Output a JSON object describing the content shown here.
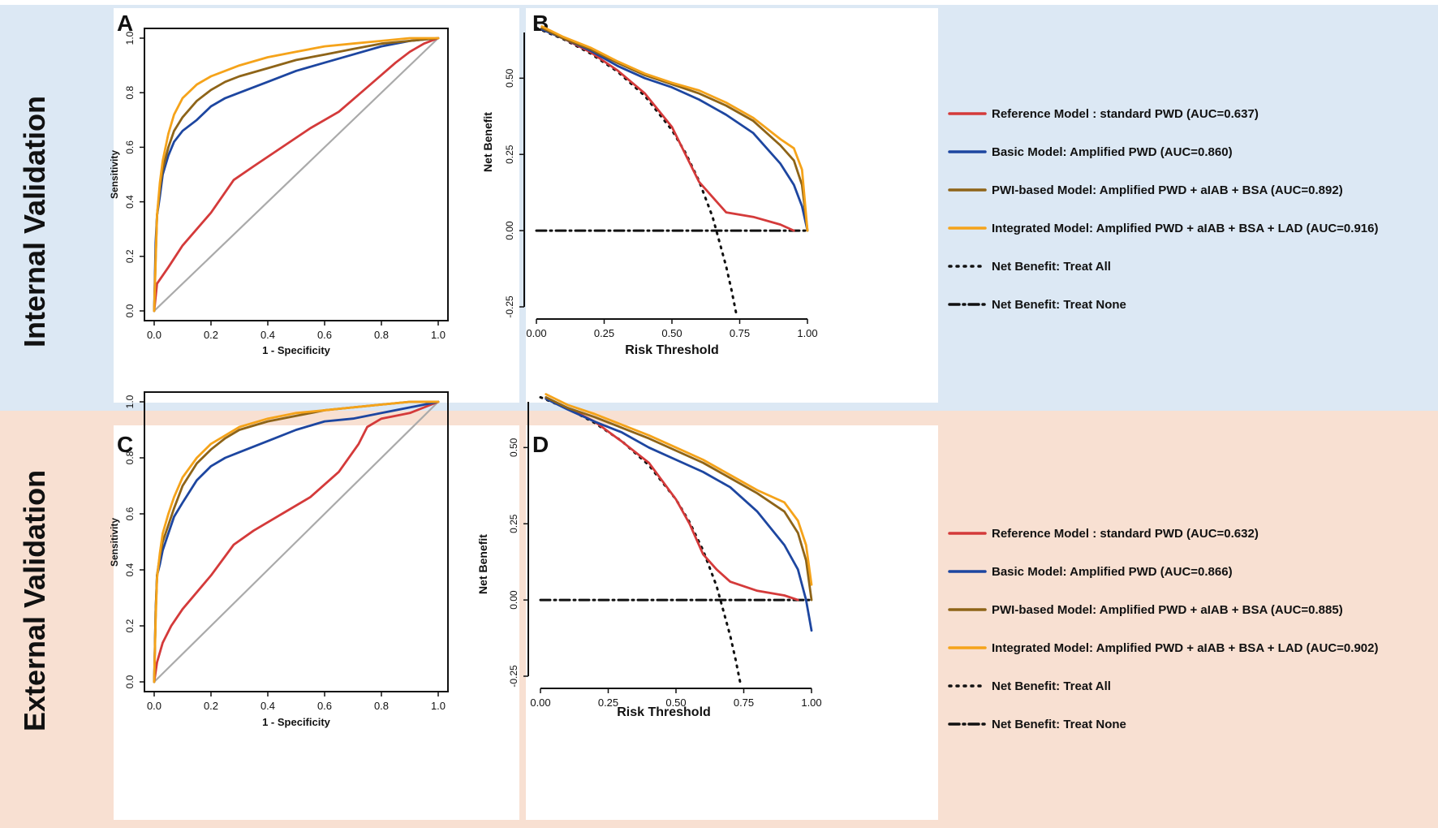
{
  "sections": [
    {
      "label": "Internal Validation",
      "bg": "#dce8f4"
    },
    {
      "label": "External Validation",
      "bg": "#f8e0d2"
    }
  ],
  "colors": {
    "reference": "#d43a3a",
    "basic": "#1d46a0",
    "pwi": "#8e6418",
    "integrated": "#f5a31a",
    "treat": "#111111",
    "diagonal": "#aaaaaa"
  },
  "legends": [
    {
      "items": [
        {
          "key": "reference",
          "style": "solid",
          "text": "Reference Model : standard PWD (AUC=0.637)"
        },
        {
          "key": "basic",
          "style": "solid",
          "text": "Basic Model: Amplified PWD (AUC=0.860)"
        },
        {
          "key": "pwi",
          "style": "solid",
          "text": "PWI-based Model: Amplified PWD + aIAB + BSA (AUC=0.892)"
        },
        {
          "key": "integrated",
          "style": "solid",
          "text": "Integrated Model: Amplified PWD + aIAB + BSA + LAD (AUC=0.916)"
        },
        {
          "key": "treat",
          "style": "dotted",
          "text": "Net Benefit: Treat All"
        },
        {
          "key": "treat",
          "style": "dashdot",
          "text": "Net Benefit: Treat None"
        }
      ]
    },
    {
      "items": [
        {
          "key": "reference",
          "style": "solid",
          "text": "Reference Model : standard PWD (AUC=0.632)"
        },
        {
          "key": "basic",
          "style": "solid",
          "text": "Basic Model: Amplified PWD (AUC=0.866)"
        },
        {
          "key": "pwi",
          "style": "solid",
          "text": "PWI-based Model: Amplified PWD + aIAB + BSA (AUC=0.885)"
        },
        {
          "key": "integrated",
          "style": "solid",
          "text": "Integrated Model: Amplified PWD + aIAB + BSA + LAD (AUC=0.902)"
        },
        {
          "key": "treat",
          "style": "dotted",
          "text": "Net Benefit: Treat All"
        },
        {
          "key": "treat",
          "style": "dashdot",
          "text": "Net Benefit: Treat None"
        }
      ]
    }
  ],
  "chart_data": [
    {
      "panel": "A",
      "type": "line",
      "title": "",
      "xlabel": "1 - Specificity",
      "ylabel": "Sensitivity",
      "xlim": [
        0,
        1
      ],
      "ylim": [
        0,
        1
      ],
      "xticks": [
        "0.0",
        "0.2",
        "0.4",
        "0.6",
        "0.8",
        "1.0"
      ],
      "yticks": [
        "0.0",
        "0.2",
        "0.4",
        "0.6",
        "0.8",
        "1.0"
      ],
      "reference_line": {
        "name": "diagonal",
        "x": [
          0,
          1
        ],
        "y": [
          0,
          1
        ]
      },
      "series": [
        {
          "key": "reference",
          "name": "Reference Model",
          "x": [
            0,
            0.01,
            0.05,
            0.1,
            0.2,
            0.28,
            0.35,
            0.45,
            0.55,
            0.65,
            0.75,
            0.85,
            0.9,
            0.95,
            1
          ],
          "y": [
            0,
            0.1,
            0.16,
            0.24,
            0.36,
            0.48,
            0.53,
            0.6,
            0.67,
            0.73,
            0.82,
            0.91,
            0.95,
            0.98,
            1
          ]
        },
        {
          "key": "basic",
          "name": "Basic Model",
          "x": [
            0,
            0.005,
            0.01,
            0.02,
            0.03,
            0.05,
            0.07,
            0.1,
            0.15,
            0.2,
            0.25,
            0.3,
            0.4,
            0.5,
            0.6,
            0.7,
            0.8,
            0.9,
            1
          ],
          "y": [
            0,
            0.25,
            0.35,
            0.42,
            0.5,
            0.57,
            0.62,
            0.66,
            0.7,
            0.75,
            0.78,
            0.8,
            0.84,
            0.88,
            0.91,
            0.94,
            0.97,
            0.99,
            1
          ]
        },
        {
          "key": "pwi",
          "name": "PWI-based Model",
          "x": [
            0,
            0.005,
            0.01,
            0.02,
            0.03,
            0.05,
            0.07,
            0.1,
            0.15,
            0.2,
            0.25,
            0.3,
            0.4,
            0.5,
            0.6,
            0.7,
            0.8,
            0.9,
            1
          ],
          "y": [
            0,
            0.2,
            0.35,
            0.45,
            0.52,
            0.6,
            0.66,
            0.71,
            0.77,
            0.81,
            0.84,
            0.86,
            0.89,
            0.92,
            0.94,
            0.96,
            0.98,
            0.99,
            1
          ]
        },
        {
          "key": "integrated",
          "name": "Integrated Model",
          "x": [
            0,
            0.005,
            0.01,
            0.02,
            0.03,
            0.05,
            0.07,
            0.1,
            0.15,
            0.2,
            0.25,
            0.3,
            0.4,
            0.5,
            0.6,
            0.7,
            0.8,
            0.9,
            1
          ],
          "y": [
            0,
            0.18,
            0.35,
            0.47,
            0.55,
            0.65,
            0.72,
            0.78,
            0.83,
            0.86,
            0.88,
            0.9,
            0.93,
            0.95,
            0.97,
            0.98,
            0.99,
            1,
            1
          ]
        }
      ]
    },
    {
      "panel": "B",
      "type": "line",
      "title": "",
      "xlabel": "Risk Threshold",
      "ylabel": "Net Benefit",
      "xlim": [
        0,
        1
      ],
      "ylim": [
        -0.25,
        0.65
      ],
      "xticks": [
        "0.00",
        "0.25",
        "0.50",
        "0.75",
        "1.00"
      ],
      "yticks": [
        "-0.25",
        "0.00",
        "0.25",
        "0.50"
      ],
      "series": [
        {
          "key": "treat",
          "name": "Net Benefit: Treat All",
          "style": "dotted",
          "x": [
            0,
            0.1,
            0.2,
            0.3,
            0.4,
            0.5,
            0.55,
            0.6,
            0.65,
            0.7,
            0.72,
            0.74
          ],
          "y": [
            0.665,
            0.628,
            0.581,
            0.521,
            0.442,
            0.33,
            0.255,
            0.163,
            0.045,
            -0.117,
            -0.196,
            -0.285
          ]
        },
        {
          "key": "treat",
          "name": "Net Benefit: Treat None",
          "style": "dashdot",
          "x": [
            0,
            1
          ],
          "y": [
            0,
            0
          ]
        },
        {
          "key": "reference",
          "name": "Reference Model",
          "x": [
            0.02,
            0.1,
            0.2,
            0.3,
            0.4,
            0.5,
            0.55,
            0.6,
            0.65,
            0.7,
            0.8,
            0.9,
            0.95
          ],
          "y": [
            0.66,
            0.63,
            0.585,
            0.525,
            0.45,
            0.34,
            0.25,
            0.16,
            0.11,
            0.06,
            0.045,
            0.02,
            0.0
          ]
        },
        {
          "key": "basic",
          "name": "Basic Model",
          "x": [
            0.02,
            0.1,
            0.2,
            0.3,
            0.4,
            0.5,
            0.6,
            0.7,
            0.8,
            0.9,
            0.95,
            0.98,
            1.0
          ],
          "y": [
            0.66,
            0.63,
            0.59,
            0.54,
            0.5,
            0.47,
            0.43,
            0.38,
            0.32,
            0.22,
            0.15,
            0.08,
            0.0
          ]
        },
        {
          "key": "pwi",
          "name": "PWI-based Model",
          "x": [
            0.02,
            0.1,
            0.2,
            0.3,
            0.4,
            0.5,
            0.6,
            0.7,
            0.8,
            0.9,
            0.95,
            0.98,
            1.0
          ],
          "y": [
            0.665,
            0.63,
            0.595,
            0.55,
            0.51,
            0.48,
            0.45,
            0.41,
            0.36,
            0.28,
            0.23,
            0.15,
            0.0
          ]
        },
        {
          "key": "integrated",
          "name": "Integrated Model",
          "x": [
            0.02,
            0.1,
            0.2,
            0.3,
            0.4,
            0.5,
            0.6,
            0.7,
            0.8,
            0.9,
            0.95,
            0.98,
            1.0
          ],
          "y": [
            0.67,
            0.635,
            0.6,
            0.555,
            0.515,
            0.485,
            0.46,
            0.42,
            0.37,
            0.3,
            0.27,
            0.2,
            0.0
          ]
        }
      ]
    },
    {
      "panel": "C",
      "type": "line",
      "title": "",
      "xlabel": "1 - Specificity",
      "ylabel": "Sensitivity",
      "xlim": [
        0,
        1
      ],
      "ylim": [
        0,
        1
      ],
      "xticks": [
        "0.0",
        "0.2",
        "0.4",
        "0.6",
        "0.8",
        "1.0"
      ],
      "yticks": [
        "0.0",
        "0.2",
        "0.4",
        "0.6",
        "0.8",
        "1.0"
      ],
      "reference_line": {
        "name": "diagonal",
        "x": [
          0,
          1
        ],
        "y": [
          0,
          1
        ]
      },
      "series": [
        {
          "key": "reference",
          "name": "Reference Model",
          "x": [
            0,
            0.01,
            0.03,
            0.06,
            0.1,
            0.2,
            0.28,
            0.35,
            0.45,
            0.55,
            0.65,
            0.72,
            0.75,
            0.8,
            0.9,
            1
          ],
          "y": [
            0,
            0.07,
            0.14,
            0.2,
            0.26,
            0.38,
            0.49,
            0.54,
            0.6,
            0.66,
            0.75,
            0.85,
            0.91,
            0.94,
            0.96,
            1
          ]
        },
        {
          "key": "basic",
          "name": "Basic Model",
          "x": [
            0,
            0.005,
            0.01,
            0.02,
            0.03,
            0.05,
            0.07,
            0.1,
            0.15,
            0.2,
            0.25,
            0.3,
            0.4,
            0.5,
            0.6,
            0.7,
            0.8,
            0.9,
            1
          ],
          "y": [
            0,
            0.25,
            0.38,
            0.42,
            0.47,
            0.53,
            0.59,
            0.64,
            0.72,
            0.77,
            0.8,
            0.82,
            0.86,
            0.9,
            0.93,
            0.94,
            0.96,
            0.98,
            1
          ]
        },
        {
          "key": "pwi",
          "name": "PWI-based Model",
          "x": [
            0,
            0.005,
            0.01,
            0.02,
            0.03,
            0.05,
            0.07,
            0.1,
            0.15,
            0.2,
            0.25,
            0.3,
            0.4,
            0.5,
            0.6,
            0.7,
            0.8,
            0.9,
            1
          ],
          "y": [
            0,
            0.25,
            0.38,
            0.45,
            0.5,
            0.56,
            0.62,
            0.7,
            0.78,
            0.83,
            0.87,
            0.9,
            0.93,
            0.95,
            0.97,
            0.98,
            0.99,
            1,
            1
          ]
        },
        {
          "key": "integrated",
          "name": "Integrated Model",
          "x": [
            0,
            0.005,
            0.01,
            0.02,
            0.03,
            0.05,
            0.07,
            0.1,
            0.15,
            0.2,
            0.25,
            0.3,
            0.4,
            0.5,
            0.6,
            0.7,
            0.8,
            0.9,
            1
          ],
          "y": [
            0,
            0.22,
            0.37,
            0.46,
            0.53,
            0.6,
            0.66,
            0.73,
            0.8,
            0.85,
            0.88,
            0.91,
            0.94,
            0.96,
            0.97,
            0.98,
            0.99,
            1,
            1
          ]
        }
      ]
    },
    {
      "panel": "D",
      "type": "line",
      "title": "",
      "xlabel": "Risk Threshold",
      "ylabel": "Net Benefit",
      "xlim": [
        0,
        1
      ],
      "ylim": [
        -0.25,
        0.65
      ],
      "xticks": [
        "0.00",
        "0.25",
        "0.50",
        "0.75",
        "1.00"
      ],
      "yticks": [
        "-0.25",
        "0.00",
        "0.25",
        "0.50"
      ],
      "series": [
        {
          "key": "treat",
          "name": "Net Benefit: Treat All",
          "style": "dotted",
          "x": [
            0,
            0.1,
            0.2,
            0.3,
            0.4,
            0.5,
            0.55,
            0.6,
            0.65,
            0.7,
            0.72,
            0.74
          ],
          "y": [
            0.665,
            0.628,
            0.581,
            0.521,
            0.442,
            0.33,
            0.255,
            0.163,
            0.045,
            -0.117,
            -0.196,
            -0.285
          ]
        },
        {
          "key": "treat",
          "name": "Net Benefit: Treat None",
          "style": "dashdot",
          "x": [
            0,
            1
          ],
          "y": [
            0,
            0
          ]
        },
        {
          "key": "reference",
          "name": "Reference Model",
          "x": [
            0.02,
            0.1,
            0.2,
            0.3,
            0.4,
            0.5,
            0.55,
            0.6,
            0.65,
            0.7,
            0.8,
            0.9,
            0.95
          ],
          "y": [
            0.66,
            0.63,
            0.585,
            0.52,
            0.45,
            0.33,
            0.25,
            0.15,
            0.1,
            0.06,
            0.03,
            0.015,
            0.0
          ]
        },
        {
          "key": "basic",
          "name": "Basic Model",
          "x": [
            0.02,
            0.1,
            0.2,
            0.3,
            0.4,
            0.5,
            0.6,
            0.7,
            0.8,
            0.9,
            0.95,
            0.98,
            1.0
          ],
          "y": [
            0.66,
            0.625,
            0.585,
            0.55,
            0.5,
            0.46,
            0.42,
            0.37,
            0.29,
            0.18,
            0.1,
            0.0,
            -0.1
          ]
        },
        {
          "key": "pwi",
          "name": "PWI-based Model",
          "x": [
            0.02,
            0.1,
            0.2,
            0.3,
            0.4,
            0.5,
            0.6,
            0.7,
            0.8,
            0.9,
            0.95,
            0.98,
            1.0
          ],
          "y": [
            0.665,
            0.63,
            0.6,
            0.565,
            0.53,
            0.49,
            0.45,
            0.4,
            0.35,
            0.29,
            0.22,
            0.13,
            0.0
          ]
        },
        {
          "key": "integrated",
          "name": "Integrated Model",
          "x": [
            0.02,
            0.1,
            0.2,
            0.3,
            0.4,
            0.5,
            0.6,
            0.7,
            0.8,
            0.9,
            0.95,
            0.98,
            1.0
          ],
          "y": [
            0.675,
            0.64,
            0.61,
            0.575,
            0.54,
            0.5,
            0.46,
            0.41,
            0.36,
            0.32,
            0.26,
            0.18,
            0.05
          ]
        }
      ]
    }
  ]
}
